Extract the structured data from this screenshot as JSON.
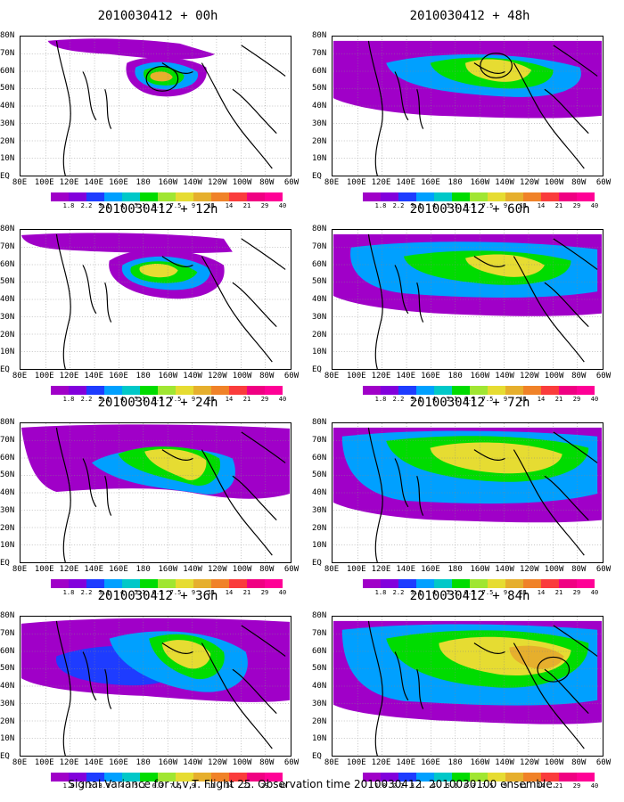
{
  "figure": {
    "caption": "Signal Variance for u,v,T. Flight 25. Observation time 2010030412. 2010030100 ensemble."
  },
  "panels": [
    {
      "id": "p00",
      "title": "2010030412 + 00h",
      "lead_hours": 0
    },
    {
      "id": "p48",
      "title": "2010030412 + 48h",
      "lead_hours": 48
    },
    {
      "id": "p12",
      "title": "2010030412 + 12h",
      "lead_hours": 12
    },
    {
      "id": "p60",
      "title": "2010030412 + 60h",
      "lead_hours": 60
    },
    {
      "id": "p24",
      "title": "2010030412 + 24h",
      "lead_hours": 24
    },
    {
      "id": "p72",
      "title": "2010030412 + 72h",
      "lead_hours": 72
    },
    {
      "id": "p36",
      "title": "2010030412 + 36h",
      "lead_hours": 36
    },
    {
      "id": "p84",
      "title": "2010030412 + 84h",
      "lead_hours": 84
    }
  ],
  "axes": {
    "x_labels": [
      "80E",
      "100E",
      "120E",
      "140E",
      "160E",
      "180",
      "160W",
      "140W",
      "120W",
      "100W",
      "80W",
      "60W"
    ],
    "y_labels": [
      "80N",
      "70N",
      "60N",
      "50N",
      "40N",
      "30N",
      "20N",
      "10N",
      "EQ"
    ]
  },
  "colorbar": {
    "labels": [
      "1.8",
      "2.2",
      "3.1",
      "4",
      "5.1",
      "6.3",
      "7.5",
      "9",
      "11",
      "14",
      "21",
      "29",
      "40"
    ],
    "colors": [
      "#a000c8",
      "#8200dc",
      "#1e3cff",
      "#00a0ff",
      "#00c8c8",
      "#00dc00",
      "#a0e632",
      "#e6dc32",
      "#e6af2d",
      "#f08228",
      "#fa3c3c",
      "#f00082",
      "#ff0096"
    ]
  },
  "palette": {
    "purple": "#a000c8",
    "violet": "#8200dc",
    "blue": "#1e3cff",
    "lightblue": "#00a0ff",
    "cyan": "#00c8c8",
    "green": "#00dc00",
    "lime": "#a0e632",
    "yellow": "#e6dc32",
    "orange": "#e6af2d",
    "darkorange": "#f08228",
    "red": "#fa3c3c",
    "magenta": "#f00082"
  }
}
